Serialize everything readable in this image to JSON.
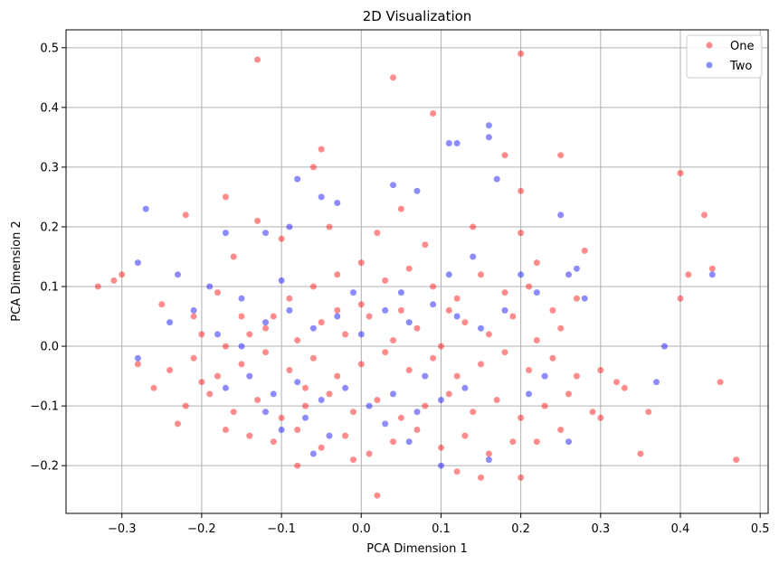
{
  "chart_data": {
    "type": "scatter",
    "title": "2D Visualization",
    "xlabel": "PCA Dimension 1",
    "ylabel": "PCA Dimension 2",
    "xlim": [
      -0.37,
      0.51
    ],
    "ylim": [
      -0.28,
      0.53
    ],
    "x_ticks": [
      -0.3,
      -0.2,
      -0.1,
      0.0,
      0.1,
      0.2,
      0.3,
      0.4,
      0.5
    ],
    "x_tick_labels": [
      "−0.3",
      "−0.2",
      "−0.1",
      "0.0",
      "0.1",
      "0.2",
      "0.3",
      "0.4",
      "0.5"
    ],
    "y_ticks": [
      -0.2,
      -0.1,
      0.0,
      0.1,
      0.2,
      0.3,
      0.4,
      0.5
    ],
    "y_tick_labels": [
      "−0.2",
      "−0.1",
      "0.0",
      "0.1",
      "0.2",
      "0.3",
      "0.4",
      "0.5"
    ],
    "grid": true,
    "legend_position": "top-right",
    "series": [
      {
        "name": "One",
        "color": "#ff0000",
        "points": [
          [
            -0.13,
            0.48
          ],
          [
            0.04,
            0.45
          ],
          [
            0.2,
            0.49
          ],
          [
            0.09,
            0.39
          ],
          [
            -0.05,
            0.33
          ],
          [
            0.25,
            0.32
          ],
          [
            0.18,
            0.32
          ],
          [
            -0.06,
            0.3
          ],
          [
            0.4,
            0.29
          ],
          [
            0.2,
            0.26
          ],
          [
            0.43,
            0.22
          ],
          [
            -0.17,
            0.25
          ],
          [
            0.05,
            0.23
          ],
          [
            -0.22,
            0.22
          ],
          [
            -0.13,
            0.21
          ],
          [
            0.2,
            0.19
          ],
          [
            0.28,
            0.16
          ],
          [
            0.41,
            0.12
          ],
          [
            -0.33,
            0.1
          ],
          [
            -0.31,
            0.11
          ],
          [
            -0.3,
            0.12
          ],
          [
            0.44,
            0.13
          ],
          [
            0.4,
            0.08
          ],
          [
            0.45,
            -0.06
          ],
          [
            0.47,
            -0.19
          ],
          [
            0.35,
            -0.18
          ],
          [
            0.36,
            -0.11
          ],
          [
            0.32,
            -0.06
          ],
          [
            0.3,
            -0.12
          ],
          [
            -0.28,
            -0.03
          ],
          [
            0.02,
            -0.25
          ],
          [
            -0.08,
            -0.2
          ],
          [
            -0.01,
            -0.19
          ],
          [
            0.12,
            -0.21
          ],
          [
            0.15,
            -0.22
          ],
          [
            0.2,
            -0.22
          ],
          [
            -0.25,
            0.07
          ],
          [
            -0.21,
            0.05
          ],
          [
            -0.18,
            0.09
          ],
          [
            -0.15,
            0.05
          ],
          [
            -0.12,
            0.03
          ],
          [
            -0.09,
            0.08
          ],
          [
            -0.06,
            0.1
          ],
          [
            -0.03,
            0.12
          ],
          [
            0.0,
            0.14
          ],
          [
            0.03,
            0.11
          ],
          [
            0.06,
            0.13
          ],
          [
            0.09,
            0.1
          ],
          [
            0.12,
            0.08
          ],
          [
            0.15,
            0.12
          ],
          [
            0.18,
            0.09
          ],
          [
            0.21,
            0.1
          ],
          [
            0.24,
            0.06
          ],
          [
            0.27,
            0.08
          ],
          [
            -0.24,
            -0.04
          ],
          [
            -0.21,
            -0.02
          ],
          [
            -0.18,
            -0.05
          ],
          [
            -0.15,
            -0.03
          ],
          [
            -0.12,
            -0.01
          ],
          [
            -0.09,
            -0.04
          ],
          [
            -0.06,
            -0.02
          ],
          [
            -0.03,
            -0.05
          ],
          [
            0.0,
            -0.03
          ],
          [
            0.03,
            -0.01
          ],
          [
            0.06,
            -0.04
          ],
          [
            0.09,
            -0.02
          ],
          [
            0.12,
            -0.05
          ],
          [
            0.15,
            -0.03
          ],
          [
            0.18,
            -0.01
          ],
          [
            0.21,
            -0.04
          ],
          [
            0.24,
            -0.02
          ],
          [
            0.27,
            -0.05
          ],
          [
            -0.22,
            -0.1
          ],
          [
            -0.19,
            -0.08
          ],
          [
            -0.16,
            -0.11
          ],
          [
            -0.13,
            -0.09
          ],
          [
            -0.1,
            -0.12
          ],
          [
            -0.07,
            -0.1
          ],
          [
            -0.04,
            -0.08
          ],
          [
            -0.01,
            -0.11
          ],
          [
            0.02,
            -0.09
          ],
          [
            0.05,
            -0.12
          ],
          [
            0.08,
            -0.1
          ],
          [
            0.11,
            -0.08
          ],
          [
            0.14,
            -0.11
          ],
          [
            0.17,
            -0.09
          ],
          [
            0.2,
            -0.12
          ],
          [
            0.23,
            -0.1
          ],
          [
            0.26,
            -0.08
          ],
          [
            0.29,
            -0.11
          ],
          [
            -0.14,
            -0.15
          ],
          [
            -0.11,
            -0.16
          ],
          [
            -0.08,
            -0.14
          ],
          [
            -0.05,
            -0.17
          ],
          [
            -0.02,
            -0.15
          ],
          [
            0.01,
            -0.18
          ],
          [
            0.04,
            -0.16
          ],
          [
            0.07,
            -0.14
          ],
          [
            0.1,
            -0.17
          ],
          [
            0.13,
            -0.15
          ],
          [
            0.16,
            -0.18
          ],
          [
            0.19,
            -0.16
          ],
          [
            -0.2,
            0.02
          ],
          [
            -0.17,
            0.0
          ],
          [
            -0.14,
            0.02
          ],
          [
            -0.11,
            0.05
          ],
          [
            -0.08,
            0.01
          ],
          [
            -0.05,
            0.04
          ],
          [
            -0.02,
            0.02
          ],
          [
            0.01,
            0.05
          ],
          [
            0.04,
            0.01
          ],
          [
            0.07,
            0.03
          ],
          [
            0.1,
            0.0
          ],
          [
            0.13,
            0.04
          ],
          [
            0.16,
            0.02
          ],
          [
            0.19,
            0.05
          ],
          [
            0.22,
            0.01
          ],
          [
            0.25,
            0.03
          ],
          [
            -0.16,
            0.15
          ],
          [
            -0.1,
            0.18
          ],
          [
            -0.04,
            0.2
          ],
          [
            0.02,
            0.19
          ],
          [
            0.08,
            0.17
          ],
          [
            0.14,
            0.2
          ],
          [
            0.22,
            0.14
          ],
          [
            -0.26,
            -0.07
          ],
          [
            -0.23,
            -0.13
          ],
          [
            -0.2,
            -0.06
          ],
          [
            -0.17,
            -0.14
          ],
          [
            0.3,
            -0.04
          ],
          [
            0.33,
            -0.07
          ],
          [
            0.25,
            -0.14
          ],
          [
            0.22,
            -0.16
          ],
          [
            0.0,
            0.07
          ],
          [
            0.05,
            0.06
          ],
          [
            -0.07,
            -0.07
          ],
          [
            0.11,
            0.06
          ],
          [
            -0.03,
            0.06
          ]
        ]
      },
      {
        "name": "Two",
        "color": "#0000ff",
        "points": [
          [
            -0.27,
            0.23
          ],
          [
            0.16,
            0.37
          ],
          [
            0.12,
            0.34
          ],
          [
            0.16,
            0.35
          ],
          [
            0.11,
            0.34
          ],
          [
            0.17,
            0.28
          ],
          [
            -0.08,
            0.28
          ],
          [
            0.04,
            0.27
          ],
          [
            0.25,
            0.22
          ],
          [
            -0.05,
            0.25
          ],
          [
            -0.03,
            0.24
          ],
          [
            0.07,
            0.26
          ],
          [
            -0.28,
            0.14
          ],
          [
            -0.23,
            0.12
          ],
          [
            -0.19,
            0.1
          ],
          [
            -0.17,
            0.19
          ],
          [
            -0.12,
            0.19
          ],
          [
            -0.09,
            0.2
          ],
          [
            0.26,
            0.12
          ],
          [
            0.27,
            0.13
          ],
          [
            0.28,
            0.08
          ],
          [
            0.44,
            0.12
          ],
          [
            0.38,
            0.0
          ],
          [
            0.37,
            -0.06
          ],
          [
            0.26,
            -0.16
          ],
          [
            -0.28,
            -0.02
          ],
          [
            0.1,
            -0.2
          ],
          [
            0.16,
            -0.19
          ],
          [
            -0.06,
            -0.18
          ],
          [
            -0.24,
            0.04
          ],
          [
            -0.21,
            0.06
          ],
          [
            -0.18,
            0.02
          ],
          [
            -0.15,
            0.0
          ],
          [
            -0.12,
            0.04
          ],
          [
            -0.09,
            0.06
          ],
          [
            -0.06,
            0.03
          ],
          [
            -0.03,
            0.05
          ],
          [
            0.0,
            0.02
          ],
          [
            0.03,
            0.06
          ],
          [
            0.06,
            0.04
          ],
          [
            0.09,
            0.07
          ],
          [
            0.12,
            0.05
          ],
          [
            0.15,
            0.03
          ],
          [
            0.18,
            0.06
          ],
          [
            -0.17,
            -0.07
          ],
          [
            -0.14,
            -0.05
          ],
          [
            -0.11,
            -0.08
          ],
          [
            -0.08,
            -0.06
          ],
          [
            -0.05,
            -0.09
          ],
          [
            -0.02,
            -0.07
          ],
          [
            0.01,
            -0.1
          ],
          [
            0.04,
            -0.08
          ],
          [
            0.07,
            -0.11
          ],
          [
            0.1,
            -0.09
          ],
          [
            0.13,
            -0.07
          ],
          [
            -0.1,
            -0.14
          ],
          [
            -0.07,
            -0.12
          ],
          [
            -0.04,
            -0.15
          ],
          [
            0.03,
            -0.13
          ],
          [
            0.06,
            -0.16
          ],
          [
            -0.15,
            0.08
          ],
          [
            -0.1,
            0.11
          ],
          [
            0.2,
            0.12
          ],
          [
            0.22,
            0.09
          ],
          [
            0.23,
            -0.05
          ],
          [
            0.21,
            -0.08
          ],
          [
            -0.01,
            0.09
          ],
          [
            0.05,
            0.09
          ],
          [
            0.11,
            0.12
          ],
          [
            0.14,
            0.15
          ],
          [
            -0.12,
            -0.11
          ],
          [
            0.08,
            -0.05
          ]
        ]
      }
    ]
  }
}
